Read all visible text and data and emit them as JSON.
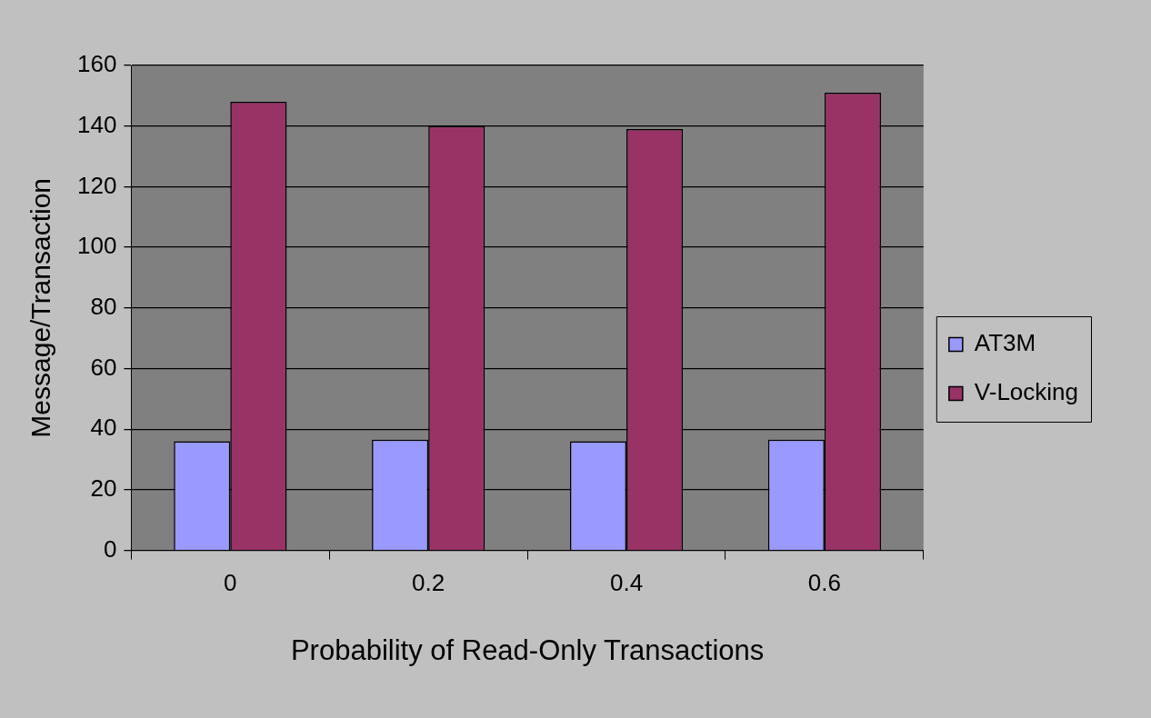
{
  "chart_data": {
    "type": "bar",
    "xlabel": "Probability of Read-Only Transactions",
    "ylabel": "Message/Transaction",
    "categories": [
      "0",
      "0.2",
      "0.4",
      "0.6"
    ],
    "series": [
      {
        "name": "AT3M",
        "color": "#9999ff",
        "values": [
          36,
          36.5,
          36,
          36.5
        ]
      },
      {
        "name": "V-Locking",
        "color": "#993366",
        "values": [
          148,
          140,
          139,
          151
        ]
      }
    ],
    "ylim": [
      0,
      160
    ],
    "yticks": [
      0,
      20,
      40,
      60,
      80,
      100,
      120,
      140,
      160
    ],
    "grid": "y",
    "legend": "right"
  }
}
